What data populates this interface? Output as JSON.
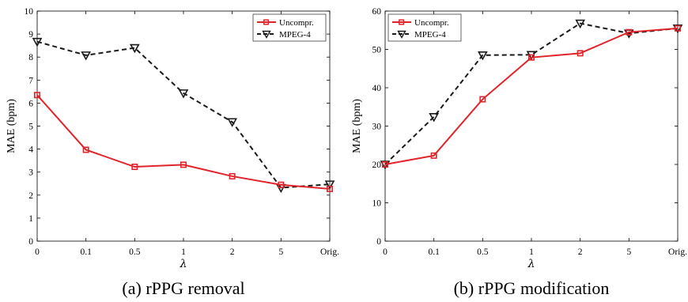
{
  "colors": {
    "uncompressed": "#e0242a",
    "mpeg4": "#1a1a1a"
  },
  "chart_data": [
    {
      "type": "line",
      "caption": "(a) rPPG removal",
      "xlabel": "λ",
      "ylabel": "MAE (bpm)",
      "categories": [
        "0",
        "0.1",
        "0.5",
        "1",
        "2",
        "5",
        "Orig."
      ],
      "ylim": [
        0,
        10
      ],
      "yticks": [
        "0",
        "1",
        "2",
        "3",
        "4",
        "5",
        "6",
        "7",
        "8",
        "9",
        "10"
      ],
      "legend_position": "top-right",
      "grid": false,
      "series": [
        {
          "name": "Uncompr.",
          "values": [
            6.35,
            3.97,
            3.23,
            3.32,
            2.82,
            2.45,
            2.27
          ],
          "style": "solid",
          "marker": "square"
        },
        {
          "name": "MPEG-4",
          "values": [
            8.67,
            8.08,
            8.4,
            6.43,
            5.18,
            2.32,
            2.47
          ],
          "style": "dashed",
          "marker": "triangle-down"
        }
      ]
    },
    {
      "type": "line",
      "caption": "(b) rPPG modification",
      "xlabel": "λ",
      "ylabel": "MAE (bpm)",
      "categories": [
        "0",
        "0.1",
        "0.5",
        "1",
        "2",
        "5",
        "Orig."
      ],
      "ylim": [
        0,
        60
      ],
      "yticks": [
        "0",
        "10",
        "20",
        "30",
        "40",
        "50",
        "60"
      ],
      "legend_position": "top-left",
      "grid": false,
      "series": [
        {
          "name": "Uncompr.",
          "values": [
            20.0,
            22.3,
            37.0,
            47.9,
            49.0,
            54.5,
            55.5
          ],
          "style": "solid",
          "marker": "square"
        },
        {
          "name": "MPEG-4",
          "values": [
            20.0,
            32.4,
            48.5,
            48.6,
            56.8,
            54.2,
            55.5
          ],
          "style": "dashed",
          "marker": "triangle-down"
        }
      ]
    }
  ]
}
